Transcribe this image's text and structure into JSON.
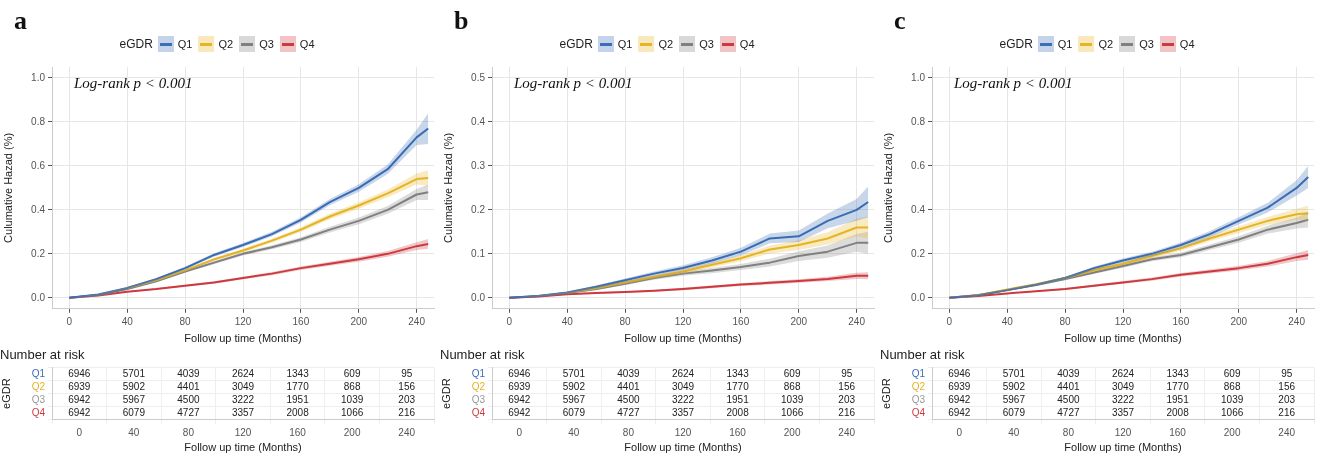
{
  "chart_data": [
    {
      "type": "line",
      "title": "a",
      "legend_title": "eGDR",
      "legend": "top",
      "xlabel": "Follow up time (Months)",
      "ylabel": "Culumative Hazad (%)",
      "grid": true,
      "annotations": [
        "Log-rank p < 0.001"
      ],
      "xlim": [
        -12,
        252
      ],
      "xticks": [
        0,
        40,
        80,
        120,
        160,
        200,
        240
      ],
      "ylim": [
        -0.05,
        1.05
      ],
      "yticks": [
        {
          "value": 0,
          "label": "0.0"
        },
        {
          "value": 0.2,
          "label": "0.2"
        },
        {
          "value": 0.4,
          "label": "0.4"
        },
        {
          "value": 0.6,
          "label": "0.6"
        },
        {
          "value": 0.8,
          "label": "0.8"
        },
        {
          "value": 1,
          "label": "1.0"
        }
      ],
      "x": [
        0,
        20,
        40,
        60,
        80,
        100,
        120,
        140,
        160,
        180,
        200,
        220,
        240,
        248
      ],
      "series": [
        {
          "name": "Q1",
          "color": "#3a6db5",
          "values": [
            0,
            0.015,
            0.045,
            0.085,
            0.135,
            0.195,
            0.24,
            0.29,
            0.355,
            0.435,
            0.5,
            0.585,
            0.73,
            0.77
          ],
          "lower": [
            0,
            0.013,
            0.042,
            0.08,
            0.129,
            0.187,
            0.231,
            0.28,
            0.343,
            0.421,
            0.483,
            0.563,
            0.695,
            0.7
          ],
          "upper": [
            0,
            0.017,
            0.048,
            0.09,
            0.141,
            0.203,
            0.249,
            0.3,
            0.367,
            0.449,
            0.517,
            0.607,
            0.765,
            0.84
          ]
        },
        {
          "name": "Q2",
          "color": "#e6b323",
          "values": [
            null,
            null,
            0.045,
            0.08,
            0.125,
            0.175,
            0.215,
            0.26,
            0.31,
            0.37,
            0.42,
            0.475,
            0.54,
            0.545
          ],
          "lower": [
            0,
            0.013,
            0.042,
            0.076,
            0.12,
            0.168,
            0.207,
            0.251,
            0.299,
            0.357,
            0.405,
            0.457,
            0.515,
            0.51
          ],
          "upper": [
            0,
            0.017,
            0.048,
            0.084,
            0.13,
            0.182,
            0.223,
            0.269,
            0.321,
            0.383,
            0.435,
            0.493,
            0.565,
            0.58
          ]
        },
        {
          "name": "Q3",
          "color": "#808080",
          "values": [
            0,
            0.013,
            0.04,
            0.075,
            0.12,
            0.16,
            0.2,
            0.23,
            0.265,
            0.31,
            0.35,
            0.4,
            0.47,
            0.48
          ],
          "lower": [
            0,
            0.011,
            0.037,
            0.071,
            0.115,
            0.153,
            0.192,
            0.221,
            0.254,
            0.297,
            0.335,
            0.382,
            0.445,
            0.445
          ],
          "upper": [
            0,
            0.015,
            0.043,
            0.079,
            0.125,
            0.167,
            0.208,
            0.239,
            0.276,
            0.323,
            0.365,
            0.418,
            0.495,
            0.515
          ]
        },
        {
          "name": "Q4",
          "color": "#cc3a3f",
          "values": [
            0,
            0.01,
            0.028,
            0.04,
            0.055,
            0.07,
            0.09,
            0.11,
            0.135,
            0.155,
            0.175,
            0.2,
            0.235,
            0.245
          ],
          "lower": [
            0,
            0.009,
            0.026,
            0.037,
            0.051,
            0.065,
            0.084,
            0.103,
            0.127,
            0.146,
            0.164,
            0.187,
            0.217,
            0.223
          ],
          "upper": [
            0,
            0.011,
            0.03,
            0.043,
            0.059,
            0.075,
            0.096,
            0.117,
            0.143,
            0.164,
            0.186,
            0.213,
            0.253,
            0.267
          ]
        }
      ]
    },
    {
      "type": "heatmap",
      "title": "Number at risk",
      "xlabel": "Follow up time (Months)",
      "ylabel": "eGDR",
      "grid": true,
      "data_labels": true,
      "categories": [
        "0",
        "40",
        "80",
        "120",
        "160",
        "200",
        "240"
      ],
      "y_categories": [
        "Q1",
        "Q2",
        "Q3",
        "Q4"
      ],
      "colors": [
        "#3a6db5",
        "#e6b323",
        "#9a9a9a",
        "#cc3a3f"
      ],
      "cells": [
        [
          6946,
          5701,
          4039,
          2624,
          1343,
          609,
          95
        ],
        [
          6939,
          5902,
          4401,
          3049,
          1770,
          868,
          156
        ],
        [
          6942,
          5967,
          4500,
          3222,
          1951,
          1039,
          203
        ],
        [
          6942,
          6079,
          4727,
          3357,
          2008,
          1066,
          216
        ]
      ]
    },
    {
      "type": "line",
      "title": "b",
      "legend_title": "eGDR",
      "legend": "top",
      "xlabel": "Follow up time (Months)",
      "ylabel": "Culumative Hazad (%)",
      "grid": true,
      "annotations": [
        "Log-rank p < 0.001"
      ],
      "xlim": [
        -12,
        252
      ],
      "xticks": [
        0,
        40,
        80,
        120,
        160,
        200,
        240
      ],
      "ylim": [
        -0.025,
        0.525
      ],
      "yticks": [
        {
          "value": 0,
          "label": "0.0"
        },
        {
          "value": 0.1,
          "label": "0.1"
        },
        {
          "value": 0.2,
          "label": "0.2"
        },
        {
          "value": 0.3,
          "label": "0.3"
        },
        {
          "value": 0.4,
          "label": "0.4"
        },
        {
          "value": 0.5,
          "label": "0.5"
        }
      ],
      "x": [
        0,
        20,
        40,
        60,
        80,
        100,
        120,
        140,
        160,
        180,
        200,
        220,
        240,
        248
      ],
      "series": [
        {
          "name": "Q1",
          "color": "#3a6db5",
          "values": [
            0,
            0.004,
            0.012,
            0.025,
            0.04,
            0.055,
            0.068,
            0.085,
            0.105,
            0.135,
            0.14,
            0.175,
            0.2,
            0.218
          ],
          "lower": [
            0,
            0.003,
            0.01,
            0.022,
            0.036,
            0.05,
            0.062,
            0.078,
            0.096,
            0.124,
            0.127,
            0.158,
            0.175,
            0.183
          ],
          "upper": [
            0,
            0.005,
            0.014,
            0.028,
            0.044,
            0.06,
            0.074,
            0.092,
            0.114,
            0.146,
            0.153,
            0.192,
            0.225,
            0.253
          ]
        },
        {
          "name": "Q2",
          "color": "#e6b323",
          "values": [
            null,
            null,
            0.012,
            0.022,
            0.035,
            0.048,
            0.06,
            0.075,
            0.09,
            0.11,
            0.12,
            0.135,
            0.16,
            0.16
          ],
          "lower": [
            0,
            0.003,
            0.01,
            0.019,
            0.032,
            0.044,
            0.055,
            0.069,
            0.083,
            0.101,
            0.109,
            0.121,
            0.14,
            0.135
          ],
          "upper": [
            0,
            0.005,
            0.014,
            0.025,
            0.038,
            0.052,
            0.065,
            0.081,
            0.097,
            0.119,
            0.131,
            0.149,
            0.18,
            0.185
          ]
        },
        {
          "name": "Q3",
          "color": "#808080",
          "values": [
            0,
            0.004,
            0.011,
            0.02,
            0.032,
            0.045,
            0.055,
            0.062,
            0.07,
            0.08,
            0.095,
            0.105,
            0.125,
            0.125
          ],
          "lower": [
            0,
            0.003,
            0.009,
            0.017,
            0.029,
            0.041,
            0.05,
            0.056,
            0.063,
            0.071,
            0.084,
            0.091,
            0.105,
            0.1
          ],
          "upper": [
            0,
            0.005,
            0.013,
            0.023,
            0.035,
            0.049,
            0.06,
            0.068,
            0.077,
            0.089,
            0.106,
            0.119,
            0.145,
            0.15
          ]
        },
        {
          "name": "Q4",
          "color": "#cc3a3f",
          "values": [
            0,
            0.003,
            0.008,
            0.011,
            0.013,
            0.016,
            0.02,
            0.025,
            0.03,
            0.034,
            0.038,
            0.043,
            0.05,
            0.05
          ],
          "lower": [
            0,
            0.002,
            0.007,
            0.009,
            0.011,
            0.014,
            0.017,
            0.022,
            0.027,
            0.03,
            0.034,
            0.038,
            0.043,
            0.042
          ],
          "upper": [
            0,
            0.004,
            0.009,
            0.013,
            0.015,
            0.018,
            0.023,
            0.028,
            0.033,
            0.038,
            0.042,
            0.048,
            0.057,
            0.058
          ]
        }
      ]
    },
    {
      "type": "heatmap",
      "title": "Number at risk",
      "xlabel": "Follow up time (Months)",
      "ylabel": "eGDR",
      "grid": true,
      "data_labels": true,
      "categories": [
        "0",
        "40",
        "80",
        "120",
        "160",
        "200",
        "240"
      ],
      "y_categories": [
        "Q1",
        "Q2",
        "Q3",
        "Q4"
      ],
      "colors": [
        "#3a6db5",
        "#e6b323",
        "#9a9a9a",
        "#cc3a3f"
      ],
      "cells": [
        [
          6946,
          5701,
          4039,
          2624,
          1343,
          609,
          95
        ],
        [
          6939,
          5902,
          4401,
          3049,
          1770,
          868,
          156
        ],
        [
          6942,
          5967,
          4500,
          3222,
          1951,
          1039,
          203
        ],
        [
          6942,
          6079,
          4727,
          3357,
          2008,
          1066,
          216
        ]
      ]
    },
    {
      "type": "line",
      "title": "c",
      "legend_title": "eGDR",
      "legend": "top",
      "xlabel": "Follow up time (Months)",
      "ylabel": "Culumative Hazad (%)",
      "grid": true,
      "annotations": [
        "Log-rank p < 0.001"
      ],
      "xlim": [
        -12,
        252
      ],
      "xticks": [
        0,
        40,
        80,
        120,
        160,
        200,
        240
      ],
      "ylim": [
        -0.05,
        1.05
      ],
      "yticks": [
        {
          "value": 0,
          "label": "0.0"
        },
        {
          "value": 0.2,
          "label": "0.2"
        },
        {
          "value": 0.4,
          "label": "0.4"
        },
        {
          "value": 0.6,
          "label": "0.6"
        },
        {
          "value": 0.8,
          "label": "0.8"
        },
        {
          "value": 1,
          "label": "1.0"
        }
      ],
      "x": [
        0,
        20,
        40,
        60,
        80,
        100,
        120,
        140,
        160,
        180,
        200,
        220,
        240,
        248
      ],
      "series": [
        {
          "name": "Q1",
          "color": "#3a6db5",
          "values": [
            0,
            0.012,
            0.035,
            0.06,
            0.09,
            0.135,
            0.17,
            0.2,
            0.24,
            0.29,
            0.35,
            0.41,
            0.5,
            0.55
          ],
          "lower": [
            0,
            0.01,
            0.032,
            0.055,
            0.084,
            0.127,
            0.161,
            0.19,
            0.228,
            0.276,
            0.333,
            0.388,
            0.465,
            0.5
          ],
          "upper": [
            0,
            0.014,
            0.038,
            0.065,
            0.096,
            0.143,
            0.179,
            0.21,
            0.252,
            0.304,
            0.367,
            0.432,
            0.535,
            0.6
          ]
        },
        {
          "name": "Q2",
          "color": "#e6b323",
          "values": [
            0,
            0.013,
            0.038,
            0.062,
            0.09,
            0.125,
            0.155,
            0.19,
            0.225,
            0.27,
            0.31,
            0.35,
            0.38,
            0.385
          ],
          "lower": [
            0,
            0.011,
            0.035,
            0.058,
            0.085,
            0.118,
            0.147,
            0.181,
            0.214,
            0.257,
            0.295,
            0.332,
            0.355,
            0.35
          ],
          "upper": [
            0,
            0.015,
            0.041,
            0.066,
            0.095,
            0.132,
            0.163,
            0.199,
            0.236,
            0.283,
            0.325,
            0.368,
            0.405,
            0.42
          ]
        },
        {
          "name": "Q3",
          "color": "#808080",
          "values": [
            0,
            0.012,
            0.035,
            0.058,
            0.085,
            0.115,
            0.145,
            0.175,
            0.195,
            0.23,
            0.265,
            0.31,
            0.34,
            0.355
          ],
          "lower": [
            0,
            0.01,
            0.032,
            0.054,
            0.08,
            0.108,
            0.137,
            0.166,
            0.184,
            0.217,
            0.25,
            0.292,
            0.315,
            0.32
          ],
          "upper": [
            0,
            0.014,
            0.038,
            0.062,
            0.09,
            0.122,
            0.153,
            0.184,
            0.206,
            0.243,
            0.28,
            0.328,
            0.365,
            0.39
          ]
        },
        {
          "name": "Q4",
          "color": "#cc3a3f",
          "values": [
            0,
            0.008,
            0.02,
            0.03,
            0.04,
            0.055,
            0.07,
            0.085,
            0.105,
            0.12,
            0.135,
            0.155,
            0.185,
            0.195
          ],
          "lower": [
            0,
            0.007,
            0.018,
            0.027,
            0.036,
            0.05,
            0.064,
            0.078,
            0.097,
            0.111,
            0.124,
            0.142,
            0.167,
            0.173
          ],
          "upper": [
            0,
            0.009,
            0.022,
            0.033,
            0.044,
            0.06,
            0.076,
            0.092,
            0.113,
            0.129,
            0.146,
            0.168,
            0.203,
            0.217
          ]
        }
      ]
    },
    {
      "type": "heatmap",
      "title": "Number at risk",
      "xlabel": "Follow up time (Months)",
      "ylabel": "eGDR",
      "grid": true,
      "data_labels": true,
      "categories": [
        "0",
        "40",
        "80",
        "120",
        "160",
        "200",
        "240"
      ],
      "y_categories": [
        "Q1",
        "Q2",
        "Q3",
        "Q4"
      ],
      "colors": [
        "#3a6db5",
        "#e6b323",
        "#9a9a9a",
        "#cc3a3f"
      ],
      "cells": [
        [
          6946,
          5701,
          4039,
          2624,
          1343,
          609,
          95
        ],
        [
          6939,
          5902,
          4401,
          3049,
          1770,
          868,
          156
        ],
        [
          6942,
          5967,
          4500,
          3222,
          1951,
          1039,
          203
        ],
        [
          6942,
          6079,
          4727,
          3357,
          2008,
          1066,
          216
        ]
      ]
    }
  ]
}
